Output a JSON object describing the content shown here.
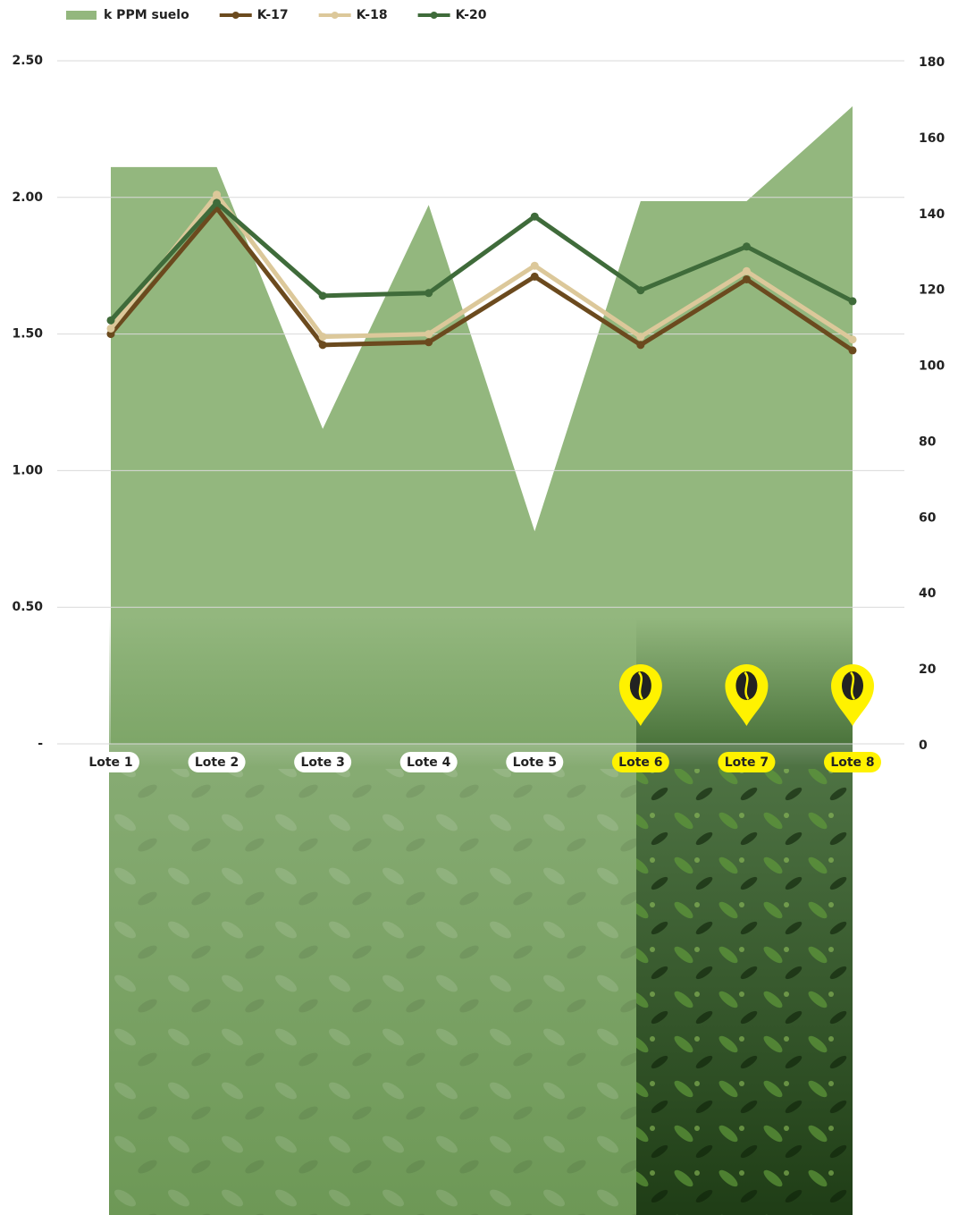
{
  "chart_data": {
    "type": "combo",
    "categories": [
      "Lote 1",
      "Lote 2",
      "Lote 3",
      "Lote 4",
      "Lote 5",
      "Lote 6",
      "Lote 7",
      "Lote 8"
    ],
    "highlighted": [
      5,
      6,
      7
    ],
    "highlight_color": "#fff200",
    "series": [
      {
        "name": "k PPM suelo",
        "type": "area",
        "axis": "y2",
        "color": "#93b77e",
        "values": [
          152,
          152,
          83,
          142,
          56,
          143,
          143,
          168
        ]
      },
      {
        "name": "K-17",
        "type": "line",
        "color": "#6b4a1e",
        "values": [
          1.5,
          1.96,
          1.46,
          1.47,
          1.71,
          1.46,
          1.7,
          1.44
        ]
      },
      {
        "name": "K-18",
        "type": "line",
        "color": "#dcc89a",
        "values": [
          1.52,
          2.01,
          1.49,
          1.5,
          1.75,
          1.49,
          1.73,
          1.48
        ]
      },
      {
        "name": "K-20",
        "type": "line",
        "color": "#3f6b3a",
        "values": [
          1.55,
          1.98,
          1.64,
          1.65,
          1.93,
          1.66,
          1.82,
          1.62
        ]
      }
    ],
    "ylim": [
      0,
      2.5
    ],
    "yticks": [
      {
        "value": 0,
        "label": "-"
      },
      {
        "value": 0.5,
        "label": "0.50"
      },
      {
        "value": 1,
        "label": "1.00"
      },
      {
        "value": 1.5,
        "label": "1.50"
      },
      {
        "value": 2,
        "label": "2.00"
      },
      {
        "value": 2.5,
        "label": "2.50"
      }
    ],
    "y2lim": [
      0,
      180
    ],
    "y2ticks": [
      0,
      20,
      40,
      60,
      80,
      100,
      120,
      140,
      160,
      180
    ],
    "grid": true
  }
}
